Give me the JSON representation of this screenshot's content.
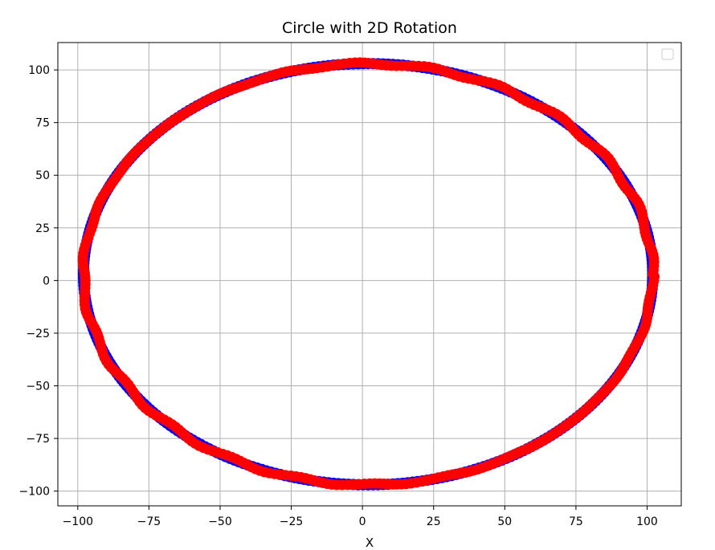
{
  "chart_data": {
    "type": "scatter",
    "title": "Circle with 2D Rotation",
    "xlabel": "X",
    "ylabel": "",
    "xlim": [
      -107,
      112
    ],
    "ylim": [
      -107,
      113
    ],
    "xticks": [
      -100,
      -75,
      -50,
      -25,
      0,
      25,
      50,
      75,
      100
    ],
    "xtick_labels": [
      "−100",
      "−75",
      "−50",
      "−25",
      "0",
      "25",
      "50",
      "75",
      "100"
    ],
    "yticks": [
      -100,
      -75,
      -50,
      -25,
      0,
      25,
      50,
      75,
      100
    ],
    "ytick_labels": [
      "−100",
      "−75",
      "−50",
      "−25",
      "0",
      "25",
      "50",
      "75",
      "100"
    ],
    "grid": true,
    "legend": {
      "placement": "top-right",
      "entries": []
    },
    "series": [
      {
        "marker_color": "#0000ff",
        "center": [
          2,
          3
        ],
        "radius_x": 100,
        "radius_y": 100,
        "n_points": 360
      },
      {
        "marker_color": "#ff0000",
        "center": [
          2,
          3
        ],
        "radius_x": 100,
        "radius_y": 100,
        "n_points": 360,
        "jitter_x": [
          0,
          0
        ],
        "rotation_deg": 0
      }
    ],
    "colors": {
      "grid": "#b0b0b0",
      "axes": "#000000"
    }
  }
}
